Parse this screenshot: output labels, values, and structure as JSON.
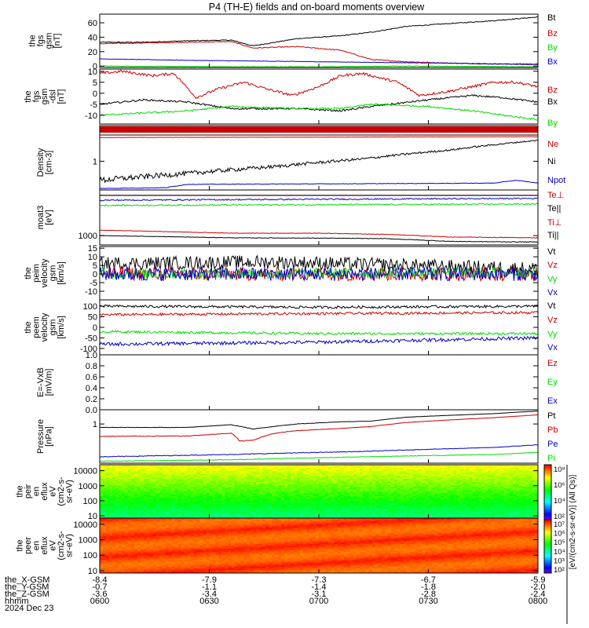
{
  "title": "P4 (TH-E) fields and on-board moments overview",
  "colors": {
    "black": "#000000",
    "red": "#cc0000",
    "green": "#00dd00",
    "blue": "#0000cc"
  },
  "chart_data": [
    {
      "type": "line",
      "id": "fgs_mag",
      "ylabel": [
        "the",
        "fgs",
        "gsm",
        "[nT]"
      ],
      "ylim": [
        -2,
        72
      ],
      "yticks": [
        "0",
        "20",
        "40",
        "60"
      ],
      "ytick_values": [
        0,
        20,
        40,
        60
      ],
      "series": [
        {
          "name": "Bt",
          "color": "black",
          "x": [
            0,
            0.1,
            0.2,
            0.3,
            0.35,
            0.45,
            0.55,
            0.62,
            0.7,
            0.8,
            0.9,
            1
          ],
          "y": [
            33,
            33,
            35,
            36,
            28,
            38,
            42,
            47,
            55,
            59,
            63,
            68
          ],
          "noise": 0.6
        },
        {
          "name": "Bz",
          "color": "red",
          "x": [
            0,
            0.1,
            0.2,
            0.3,
            0.35,
            0.45,
            0.55,
            0.62,
            0.7,
            0.8,
            0.9,
            1
          ],
          "y": [
            31,
            32,
            33,
            34,
            25,
            27,
            22,
            9,
            6,
            4,
            3,
            3
          ],
          "noise": 0.6
        },
        {
          "name": "By",
          "color": "green",
          "x": [
            0,
            0.3,
            0.5,
            0.7,
            1
          ],
          "y": [
            0,
            -1,
            -1,
            0,
            -1
          ],
          "noise": 0.4
        },
        {
          "name": "Bx",
          "color": "blue",
          "x": [
            0,
            0.2,
            0.5,
            0.8,
            1
          ],
          "y": [
            10,
            8,
            6,
            4,
            2
          ],
          "noise": 0.3
        }
      ]
    },
    {
      "type": "line",
      "id": "fgs_dsl",
      "ylabel": [
        "the",
        "fgs",
        "gsm",
        "-dsl",
        "[nT]"
      ],
      "ylim": [
        -14,
        11
      ],
      "yticks": [
        "-10",
        "-5",
        "0",
        "5",
        "10"
      ],
      "ytick_values": [
        -10,
        -5,
        0,
        5,
        10
      ],
      "series": [
        {
          "name": "Bz",
          "color": "red",
          "x": [
            0,
            0.05,
            0.12,
            0.17,
            0.22,
            0.27,
            0.33,
            0.38,
            0.44,
            0.5,
            0.55,
            0.6,
            0.68,
            0.73,
            0.8,
            0.85,
            0.9,
            0.95,
            1
          ],
          "y": [
            9,
            10,
            8,
            9,
            -2,
            2,
            5,
            2,
            -1,
            3,
            8,
            9,
            5,
            -1,
            1,
            3,
            5,
            5,
            3
          ],
          "noise": 0.6
        },
        {
          "name": "Bx",
          "color": "black",
          "x": [
            0,
            0.1,
            0.2,
            0.3,
            0.45,
            0.55,
            0.62,
            0.75,
            0.85,
            0.92,
            1
          ],
          "y": [
            -5,
            -3,
            -4,
            -7,
            -7,
            -8,
            -6,
            -3,
            -1,
            -2,
            -4
          ],
          "noise": 0.4
        },
        {
          "name": "By",
          "color": "green",
          "x": [
            0,
            0.1,
            0.2,
            0.3,
            0.45,
            0.55,
            0.62,
            0.75,
            0.85,
            0.92,
            1
          ],
          "y": [
            -10,
            -9,
            -8,
            -6,
            -7,
            -7,
            -5,
            -6,
            -8,
            -10,
            -12
          ],
          "noise": 0.4
        }
      ]
    },
    {
      "type": "flag",
      "id": "mode_bar",
      "color": "red"
    },
    {
      "type": "line",
      "id": "density",
      "ylabel": [
        "Density",
        "[cm-3]"
      ],
      "ylim": [
        0.3,
        3.0
      ],
      "log": true,
      "yticks": [
        "1"
      ],
      "ytick_values": [
        1
      ],
      "series": [
        {
          "name": "Ne",
          "color": "red",
          "x": [
            0,
            1
          ],
          "y": [
            2.7,
            2.8
          ],
          "noise": 0.01
        },
        {
          "name": "Ni",
          "color": "black",
          "x": [
            0,
            0.2,
            0.4,
            0.6,
            0.8,
            1
          ],
          "y": [
            0.45,
            0.6,
            0.8,
            1.1,
            1.6,
            2.4
          ],
          "noise": 0.06
        },
        {
          "name": "Npot",
          "color": "blue",
          "x": [
            0,
            0.15,
            0.2,
            0.6,
            0.9,
            0.95,
            1
          ],
          "y": [
            0.32,
            0.33,
            0.38,
            0.39,
            0.4,
            0.45,
            0.4
          ],
          "noise": 0.004
        }
      ]
    },
    {
      "type": "line",
      "id": "temperature",
      "ylabel": [
        "moat3",
        "[eV]"
      ],
      "ylim": [
        500,
        30000
      ],
      "log": true,
      "yticks": [
        "1000"
      ],
      "ytick_values": [
        1000
      ],
      "series": [
        {
          "name": "Te⊥",
          "color": "red",
          "x": [
            0,
            1
          ],
          "y": [
            20000,
            20000
          ],
          "noise": 0
        },
        {
          "name": "Te||",
          "color": "black",
          "x": [
            0,
            1
          ],
          "y": [
            20000,
            20000
          ],
          "noise": 0
        },
        {
          "name": "Ti⊥",
          "color": "red",
          "x": [
            0,
            0.1,
            0.3,
            0.5,
            0.65,
            0.8,
            1
          ],
          "y": [
            1500,
            1400,
            1200,
            1200,
            1100,
            900,
            850
          ],
          "noise": 20
        },
        {
          "name": "Ti||",
          "color": "black",
          "x": [
            0,
            0.1,
            0.3,
            0.5,
            0.65,
            0.8,
            1
          ],
          "y": [
            1000,
            950,
            850,
            830,
            800,
            650,
            620
          ],
          "noise": 15
        },
        {
          "name": "Te⊥",
          "color": "blue",
          "x": [
            0,
            0.5,
            1
          ],
          "y": [
            14000,
            15000,
            16000
          ],
          "noise": 700
        },
        {
          "name": "Te||",
          "color": "green",
          "x": [
            0,
            0.5,
            1
          ],
          "y": [
            9500,
            10000,
            10500
          ],
          "noise": 500
        }
      ]
    },
    {
      "type": "line",
      "id": "peim_vel",
      "ylabel": [
        "the",
        "peim",
        "velocity",
        "gsm",
        "[km/s]"
      ],
      "ylim": [
        -15,
        16
      ],
      "yticks": [
        "-10",
        "-5",
        "0",
        "5",
        "10",
        "15"
      ],
      "ytick_values": [
        -10,
        -5,
        0,
        5,
        10,
        15
      ],
      "series": [
        {
          "name": "Vt",
          "color": "black",
          "x": [
            0,
            0.4,
            0.7,
            1
          ],
          "y": [
            6,
            7,
            5,
            3
          ],
          "noise": 4
        },
        {
          "name": "Vz",
          "color": "red",
          "x": [
            0,
            1
          ],
          "y": [
            0,
            0
          ],
          "noise": 4
        },
        {
          "name": "Vy",
          "color": "green",
          "x": [
            0,
            1
          ],
          "y": [
            0,
            1
          ],
          "noise": 3
        },
        {
          "name": "Vx",
          "color": "blue",
          "x": [
            0,
            1
          ],
          "y": [
            0,
            0
          ],
          "noise": 4
        }
      ]
    },
    {
      "type": "line",
      "id": "peem_vel",
      "ylabel": [
        "the",
        "peem",
        "velocity",
        "gsm",
        "[km/s]"
      ],
      "ylim": [
        -130,
        130
      ],
      "yticks": [
        "-100",
        "-50",
        "0",
        "50",
        "100"
      ],
      "ytick_values": [
        -100,
        -50,
        0,
        50,
        100
      ],
      "series": [
        {
          "name": "Vt",
          "color": "black",
          "x": [
            0,
            0.5,
            1
          ],
          "y": [
            100,
            95,
            100
          ],
          "noise": 6
        },
        {
          "name": "Vz",
          "color": "red",
          "x": [
            0,
            0.5,
            1
          ],
          "y": [
            60,
            65,
            70
          ],
          "noise": 6
        },
        {
          "name": "Vy",
          "color": "green",
          "x": [
            0,
            0.5,
            1
          ],
          "y": [
            -20,
            -30,
            -30
          ],
          "noise": 6
        },
        {
          "name": "Vx",
          "color": "blue",
          "x": [
            0,
            0.5,
            1
          ],
          "y": [
            -80,
            -70,
            -50
          ],
          "noise": 8
        }
      ]
    },
    {
      "type": "line",
      "id": "efield",
      "ylabel": [
        "E=-VxB",
        "[mV/m]"
      ],
      "ylim": [
        0,
        1.0
      ],
      "yticks": [
        "0.0",
        "0.2",
        "0.4",
        "0.6",
        "0.8",
        "1.0"
      ],
      "ytick_values": [
        0,
        0.2,
        0.4,
        0.6,
        0.8,
        1.0
      ],
      "series": [
        {
          "name": "Ez",
          "color": "red",
          "x": [],
          "y": []
        },
        {
          "name": "Ey",
          "color": "green",
          "x": [],
          "y": []
        },
        {
          "name": "Ex",
          "color": "blue",
          "x": [],
          "y": []
        }
      ]
    },
    {
      "type": "line",
      "id": "pressure",
      "ylabel": [
        "Pressure",
        "[nPa]"
      ],
      "ylim": [
        0.08,
        2.5
      ],
      "log": true,
      "yticks": [
        "1"
      ],
      "ytick_values": [
        1
      ],
      "series": [
        {
          "name": "Pt",
          "color": "black",
          "x": [
            0,
            0.2,
            0.3,
            0.35,
            0.45,
            0.55,
            0.62,
            0.7,
            0.8,
            0.9,
            1
          ],
          "y": [
            0.8,
            0.8,
            0.95,
            0.72,
            1.0,
            1.15,
            1.2,
            1.55,
            1.75,
            1.95,
            2.3
          ],
          "noise": 0.01
        },
        {
          "name": "Pb",
          "color": "red",
          "x": [
            0,
            0.2,
            0.3,
            0.32,
            0.35,
            0.4,
            0.45,
            0.55,
            0.62,
            0.7,
            0.8,
            0.9,
            1
          ],
          "y": [
            0.45,
            0.46,
            0.55,
            0.33,
            0.35,
            0.55,
            0.65,
            0.75,
            0.85,
            1.1,
            1.3,
            1.5,
            1.8
          ],
          "noise": 0.01
        },
        {
          "name": "Pe",
          "color": "blue",
          "x": [
            0,
            0.3,
            0.6,
            0.9,
            1
          ],
          "y": [
            0.12,
            0.14,
            0.17,
            0.22,
            0.26
          ],
          "noise": 0.003
        },
        {
          "name": "Pi",
          "color": "green",
          "x": [
            0,
            0.3,
            0.6,
            0.9,
            1
          ],
          "y": [
            0.09,
            0.1,
            0.12,
            0.14,
            0.16
          ],
          "noise": 0.002
        }
      ]
    },
    {
      "type": "heatmap",
      "id": "peir_spec",
      "ylabel": [
        "the",
        "peir",
        "en",
        "eflux",
        "eV",
        "(cm2-s-",
        "sr-eV)"
      ],
      "ylim": [
        7,
        25000
      ],
      "log": true,
      "yticks": [
        "10",
        "100",
        "1000",
        "10000"
      ],
      "ytick_values": [
        10,
        100,
        1000,
        10000
      ],
      "colorbar": {
        "ticks": [
          "10⁸",
          "10⁶",
          "10⁴",
          "10²"
        ],
        "range": [
          "10^0",
          "10^8"
        ]
      }
    },
    {
      "type": "heatmap",
      "id": "peer_spec",
      "ylabel": [
        "the",
        "peer",
        "en",
        "eflux",
        "eV",
        "(cm2-s-",
        "sr-eV)"
      ],
      "ylim": [
        7,
        25000
      ],
      "log": true,
      "yticks": [
        "10",
        "100",
        "1000",
        "10000"
      ],
      "ytick_values": [
        10,
        100,
        1000,
        10000
      ],
      "colorbar": {
        "ticks": [
          "10⁷",
          "10⁶",
          "10⁵",
          "10⁴",
          "10³",
          "10²"
        ],
        "range": [
          "10^1",
          "10^7"
        ]
      }
    }
  ],
  "colorbar_label": "[eV/(cm2-s-sr-eV)] (All Qs)]",
  "x_axis": {
    "rows": [
      {
        "label": "the_X-GSM",
        "values": [
          "-8.4",
          "-7.9",
          "-7.3",
          "-6.7",
          "-5.9"
        ]
      },
      {
        "label": "the_Y-GSM",
        "values": [
          "-0.7",
          "-1.1",
          "-1.4",
          "-1.8",
          "-2.0"
        ]
      },
      {
        "label": "the_Z-GSM",
        "values": [
          "-3.6",
          "-3.4",
          "-3.1",
          "-2.8",
          "-2.4"
        ]
      },
      {
        "label": "hhmm",
        "values": [
          "0600",
          "0630",
          "0700",
          "0730",
          "0800"
        ]
      }
    ],
    "date": "2024 Dec 23"
  }
}
